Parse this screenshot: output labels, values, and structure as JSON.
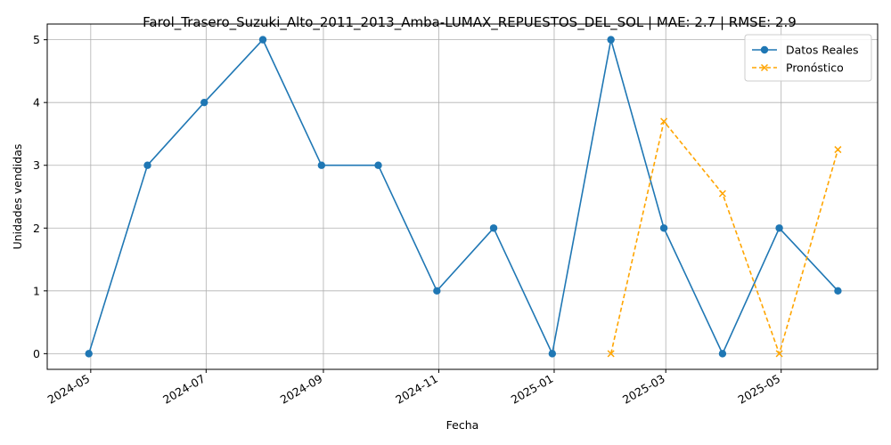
{
  "chart_data": {
    "type": "line",
    "title": "Farol_Trasero_Suzuki_Alto_2011_2013_Amba-LUMAX_REPUESTOS_DEL_SOL | MAE: 2.7 | RMSE: 2.9",
    "xlabel": "Fecha",
    "ylabel": "Unidades vendidas",
    "x_ticks": [
      "2024-05",
      "2024-07",
      "2024-09",
      "2024-11",
      "2025-01",
      "2025-03",
      "2025-05"
    ],
    "y_ticks": [
      0,
      1,
      2,
      3,
      4,
      5
    ],
    "ylim": [
      -0.25,
      5.25
    ],
    "xlim": [
      "2024-04-08",
      "2025-06-21"
    ],
    "grid": true,
    "legend_position": "top-right",
    "series": [
      {
        "name": "Datos Reales",
        "color": "#1f77b4",
        "style": "solid",
        "marker": "circle",
        "x": [
          "2024-04-30",
          "2024-05-31",
          "2024-06-30",
          "2024-07-31",
          "2024-08-31",
          "2024-09-30",
          "2024-10-31",
          "2024-11-30",
          "2024-12-31",
          "2025-01-31",
          "2025-02-28",
          "2025-03-31",
          "2025-04-30",
          "2025-05-31"
        ],
        "values": [
          0,
          3,
          4,
          5,
          3,
          3,
          1,
          2,
          0,
          5,
          2,
          0,
          2,
          1
        ]
      },
      {
        "name": "Pronóstico",
        "color": "#ffa500",
        "style": "dashed",
        "marker": "x",
        "x": [
          "2025-01-31",
          "2025-02-28",
          "2025-03-31",
          "2025-04-30",
          "2025-05-31"
        ],
        "values": [
          0.0,
          3.7,
          2.55,
          0.0,
          3.25
        ]
      }
    ]
  }
}
